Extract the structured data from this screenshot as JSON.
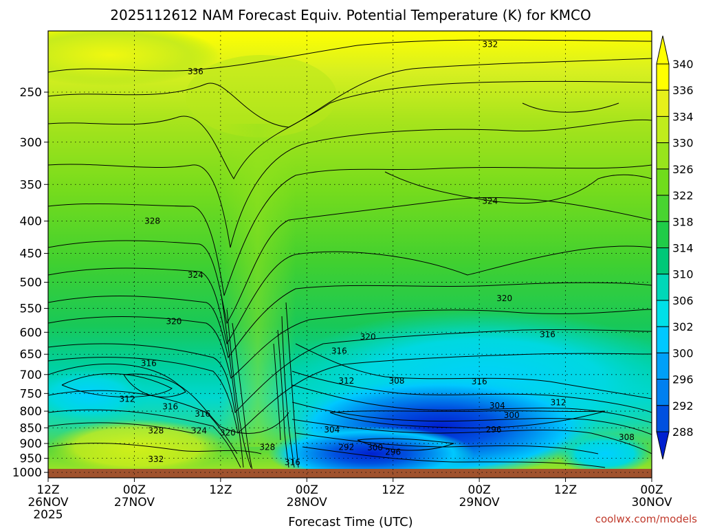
{
  "chart_data": {
    "type": "heatmap",
    "title": "2025112612 NAM Forecast Equiv. Potential Temperature (K) for KMCO",
    "xlabel": "Forecast Time (UTC)",
    "ylabel": "",
    "x_ticks": [
      {
        "label": "12Z",
        "sub": "26NOV",
        "sub2": "2025",
        "hours": 0
      },
      {
        "label": "00Z",
        "sub": "27NOV",
        "sub2": "",
        "hours": 12
      },
      {
        "label": "12Z",
        "sub": "",
        "sub2": "",
        "hours": 24
      },
      {
        "label": "00Z",
        "sub": "28NOV",
        "sub2": "",
        "hours": 36
      },
      {
        "label": "12Z",
        "sub": "",
        "sub2": "",
        "hours": 48
      },
      {
        "label": "00Z",
        "sub": "29NOV",
        "sub2": "",
        "hours": 60
      },
      {
        "label": "12Z",
        "sub": "",
        "sub2": "",
        "hours": 72
      },
      {
        "label": "00Z",
        "sub": "30NOV",
        "sub2": "",
        "hours": 84
      }
    ],
    "y_scale": "log-pressure",
    "y_ticks": [
      250,
      300,
      350,
      400,
      450,
      500,
      550,
      600,
      650,
      700,
      750,
      800,
      850,
      900,
      950,
      1000
    ],
    "xlim_hours": [
      0,
      84
    ],
    "ylim_hPa": [
      200,
      1020
    ],
    "grid": true,
    "colorbar": {
      "labels": [
        "340",
        "336",
        "334",
        "330",
        "326",
        "322",
        "318",
        "314",
        "310",
        "306",
        "302",
        "300",
        "296",
        "292",
        "288"
      ],
      "colors": [
        "#ffff00",
        "#e6f01a",
        "#c0ec1c",
        "#98e41c",
        "#70dc1c",
        "#48d430",
        "#20cc48",
        "#00c878",
        "#00d8b8",
        "#00e0e8",
        "#00c8ff",
        "#00a0f8",
        "#0080f0",
        "#0050e0",
        "#0020d0"
      ],
      "extend": "both"
    },
    "contour_labels": [
      {
        "text": "332",
        "hours": 61.5,
        "p": 210
      },
      {
        "text": "336",
        "hours": 20.5,
        "p": 232
      },
      {
        "text": "328",
        "hours": 14.5,
        "p": 400
      },
      {
        "text": "324",
        "hours": 61.5,
        "p": 372
      },
      {
        "text": "324",
        "hours": 20.5,
        "p": 487
      },
      {
        "text": "320",
        "hours": 63.5,
        "p": 530
      },
      {
        "text": "320",
        "hours": 17.5,
        "p": 577
      },
      {
        "text": "320",
        "hours": 44.5,
        "p": 610
      },
      {
        "text": "316",
        "hours": 69.5,
        "p": 605
      },
      {
        "text": "316",
        "hours": 40.5,
        "p": 642
      },
      {
        "text": "316",
        "hours": 14,
        "p": 672
      },
      {
        "text": "312",
        "hours": 41.5,
        "p": 716
      },
      {
        "text": "308",
        "hours": 48.5,
        "p": 716
      },
      {
        "text": "316",
        "hours": 60,
        "p": 718
      },
      {
        "text": "312",
        "hours": 11,
        "p": 766
      },
      {
        "text": "316",
        "hours": 17,
        "p": 787
      },
      {
        "text": "304",
        "hours": 62.5,
        "p": 784
      },
      {
        "text": "312",
        "hours": 71,
        "p": 775
      },
      {
        "text": "316",
        "hours": 21.5,
        "p": 808
      },
      {
        "text": "300",
        "hours": 64.5,
        "p": 812
      },
      {
        "text": "328",
        "hours": 15,
        "p": 859
      },
      {
        "text": "324",
        "hours": 21,
        "p": 859
      },
      {
        "text": "320",
        "hours": 25,
        "p": 866
      },
      {
        "text": "304",
        "hours": 39.5,
        "p": 856
      },
      {
        "text": "296",
        "hours": 62,
        "p": 856
      },
      {
        "text": "308",
        "hours": 80.5,
        "p": 880
      },
      {
        "text": "328",
        "hours": 30.5,
        "p": 912
      },
      {
        "text": "292",
        "hours": 41.5,
        "p": 912
      },
      {
        "text": "300",
        "hours": 45.5,
        "p": 914
      },
      {
        "text": "296",
        "hours": 48,
        "p": 928
      },
      {
        "text": "332",
        "hours": 15,
        "p": 953
      },
      {
        "text": "316",
        "hours": 34,
        "p": 964
      }
    ],
    "surface_color": "#a0522d"
  },
  "credit": "coolwx.com/models",
  "colors": {
    "frame": "#000000",
    "grid": "#000000",
    "contour": "#000000"
  }
}
